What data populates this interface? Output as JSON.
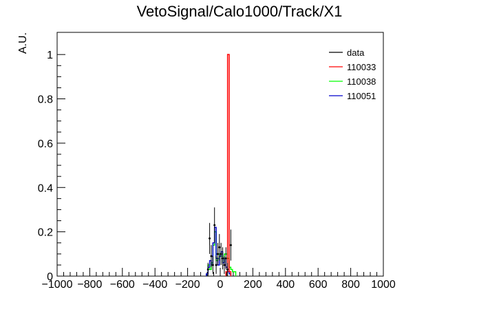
{
  "chart_data": {
    "type": "histogram",
    "title": "VetoSignal/Calo1000/Track/X1",
    "xlabel": "",
    "ylabel": "A.U.",
    "xlim": [
      -1000,
      1000
    ],
    "ylim": [
      0,
      1.1
    ],
    "x_ticks": [
      -1000,
      -800,
      -600,
      -400,
      -200,
      0,
      200,
      400,
      600,
      800,
      1000
    ],
    "x_tick_labels": [
      "−1000",
      "−800",
      "−600",
      "−400",
      "−200",
      "0",
      "200",
      "400",
      "600",
      "800",
      "1000"
    ],
    "y_ticks": [
      0,
      0.2,
      0.4,
      0.6,
      0.8,
      1
    ],
    "y_tick_labels": [
      "0",
      "0.2",
      "0.4",
      "0.6",
      "0.8",
      "1"
    ],
    "bin_width": 10,
    "legend_position": "top-right",
    "series": [
      {
        "name": "data",
        "color": "#000000",
        "style": "points-with-errors",
        "points": [
          {
            "x": -75,
            "y": 0.03,
            "err": 0.03
          },
          {
            "x": -65,
            "y": 0.17,
            "err": 0.07
          },
          {
            "x": -55,
            "y": 0.09,
            "err": 0.05
          },
          {
            "x": -45,
            "y": 0.05,
            "err": 0.04
          },
          {
            "x": -35,
            "y": 0.23,
            "err": 0.08
          },
          {
            "x": -25,
            "y": 0.05,
            "err": 0.04
          },
          {
            "x": -15,
            "y": 0.1,
            "err": 0.05
          },
          {
            "x": -5,
            "y": 0.13,
            "err": 0.06
          },
          {
            "x": 5,
            "y": 0.1,
            "err": 0.05
          },
          {
            "x": 15,
            "y": 0.08,
            "err": 0.05
          },
          {
            "x": 25,
            "y": 0.05,
            "err": 0.04
          },
          {
            "x": 35,
            "y": 0.08,
            "err": 0.05
          },
          {
            "x": 45,
            "y": 0.03,
            "err": 0.03
          },
          {
            "x": 65,
            "y": 0.14,
            "err": 0.07
          }
        ]
      },
      {
        "name": "110033",
        "color": "#ff0000",
        "style": "step",
        "bins": [
          {
            "x": 40,
            "y": 0.02
          },
          {
            "x": 50,
            "y": 1.0
          },
          {
            "x": 60,
            "y": 0.02
          }
        ]
      },
      {
        "name": "110038",
        "color": "#00ff00",
        "style": "step",
        "bins": [
          {
            "x": -80,
            "y": 0.01
          },
          {
            "x": -70,
            "y": 0.05
          },
          {
            "x": -60,
            "y": 0.03
          },
          {
            "x": -50,
            "y": 0.06
          },
          {
            "x": -40,
            "y": 0.14
          },
          {
            "x": -30,
            "y": 0.2
          },
          {
            "x": -20,
            "y": 0.07
          },
          {
            "x": -10,
            "y": 0.08
          },
          {
            "x": 0,
            "y": 0.1
          },
          {
            "x": 10,
            "y": 0.09
          },
          {
            "x": 20,
            "y": 0.06
          },
          {
            "x": 30,
            "y": 0.1
          },
          {
            "x": 40,
            "y": 0.1
          },
          {
            "x": 50,
            "y": 0.08
          },
          {
            "x": 60,
            "y": 0.04
          },
          {
            "x": 70,
            "y": 0.03
          },
          {
            "x": 80,
            "y": 0.02
          },
          {
            "x": 90,
            "y": 0.02
          }
        ]
      },
      {
        "name": "110051",
        "color": "#0000cc",
        "style": "step",
        "bins": [
          {
            "x": -80,
            "y": 0.01
          },
          {
            "x": -70,
            "y": 0.04
          },
          {
            "x": -60,
            "y": 0.07
          },
          {
            "x": -50,
            "y": 0.05
          },
          {
            "x": -40,
            "y": 0.15
          },
          {
            "x": -30,
            "y": 0.22
          },
          {
            "x": -20,
            "y": 0.08
          },
          {
            "x": -10,
            "y": 0.05
          },
          {
            "x": 0,
            "y": 0.09
          },
          {
            "x": 10,
            "y": 0.11
          },
          {
            "x": 20,
            "y": 0.06
          },
          {
            "x": 30,
            "y": 0.08
          },
          {
            "x": 40,
            "y": 0.04
          },
          {
            "x": 50,
            "y": 0.02
          },
          {
            "x": 60,
            "y": 0.01
          }
        ]
      }
    ]
  }
}
